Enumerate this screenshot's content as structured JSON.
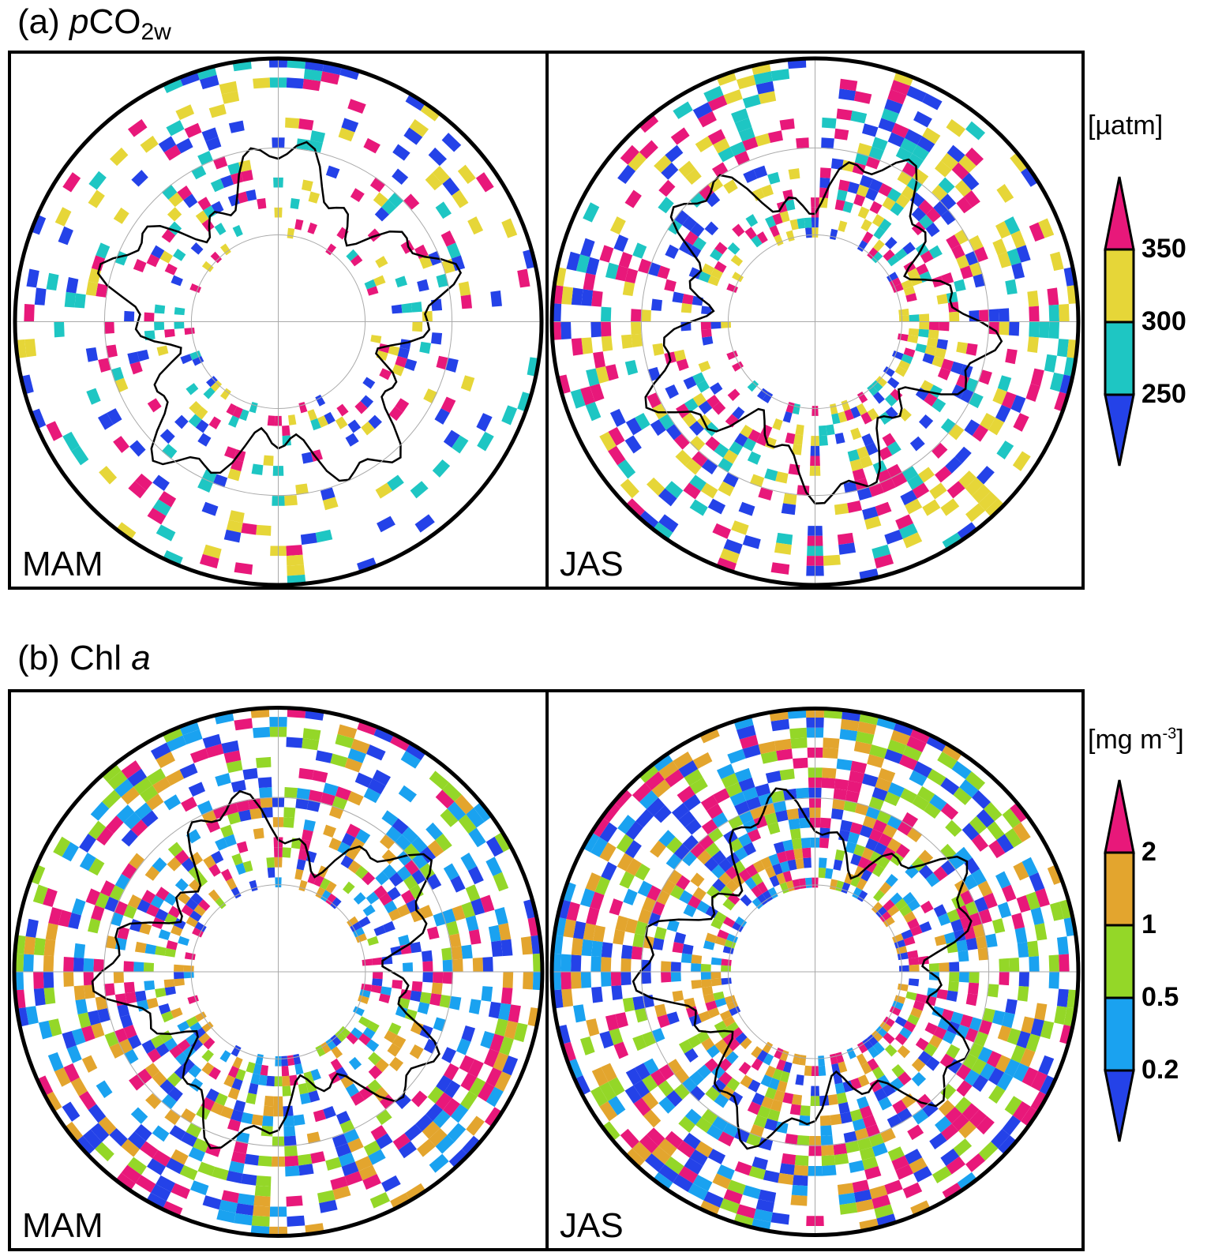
{
  "panels": [
    {
      "title_letter": "(a) ",
      "title_var": "p",
      "title_rest": "CO",
      "title_sub": "2w",
      "seasons": [
        "MAM",
        "JAS"
      ],
      "colorbar": {
        "unit": "[µatm]",
        "ticks": [
          "350",
          "300",
          "250"
        ],
        "colors": [
          "#e8187a",
          "#e6d638",
          "#1ec6c3",
          "#2442e8"
        ]
      }
    },
    {
      "title_letter": "(b) ",
      "title_rest": "Chl ",
      "title_var": "a",
      "seasons": [
        "MAM",
        "JAS"
      ],
      "colorbar": {
        "unit_main": "[mg m",
        "unit_sup": "-3",
        "unit_end": "]",
        "ticks": [
          "2",
          "1",
          "0.5",
          "0.2"
        ],
        "colors": [
          "#e8187a",
          "#e3a52e",
          "#94d728",
          "#1aa2f0",
          "#2442e8"
        ]
      }
    }
  ]
}
